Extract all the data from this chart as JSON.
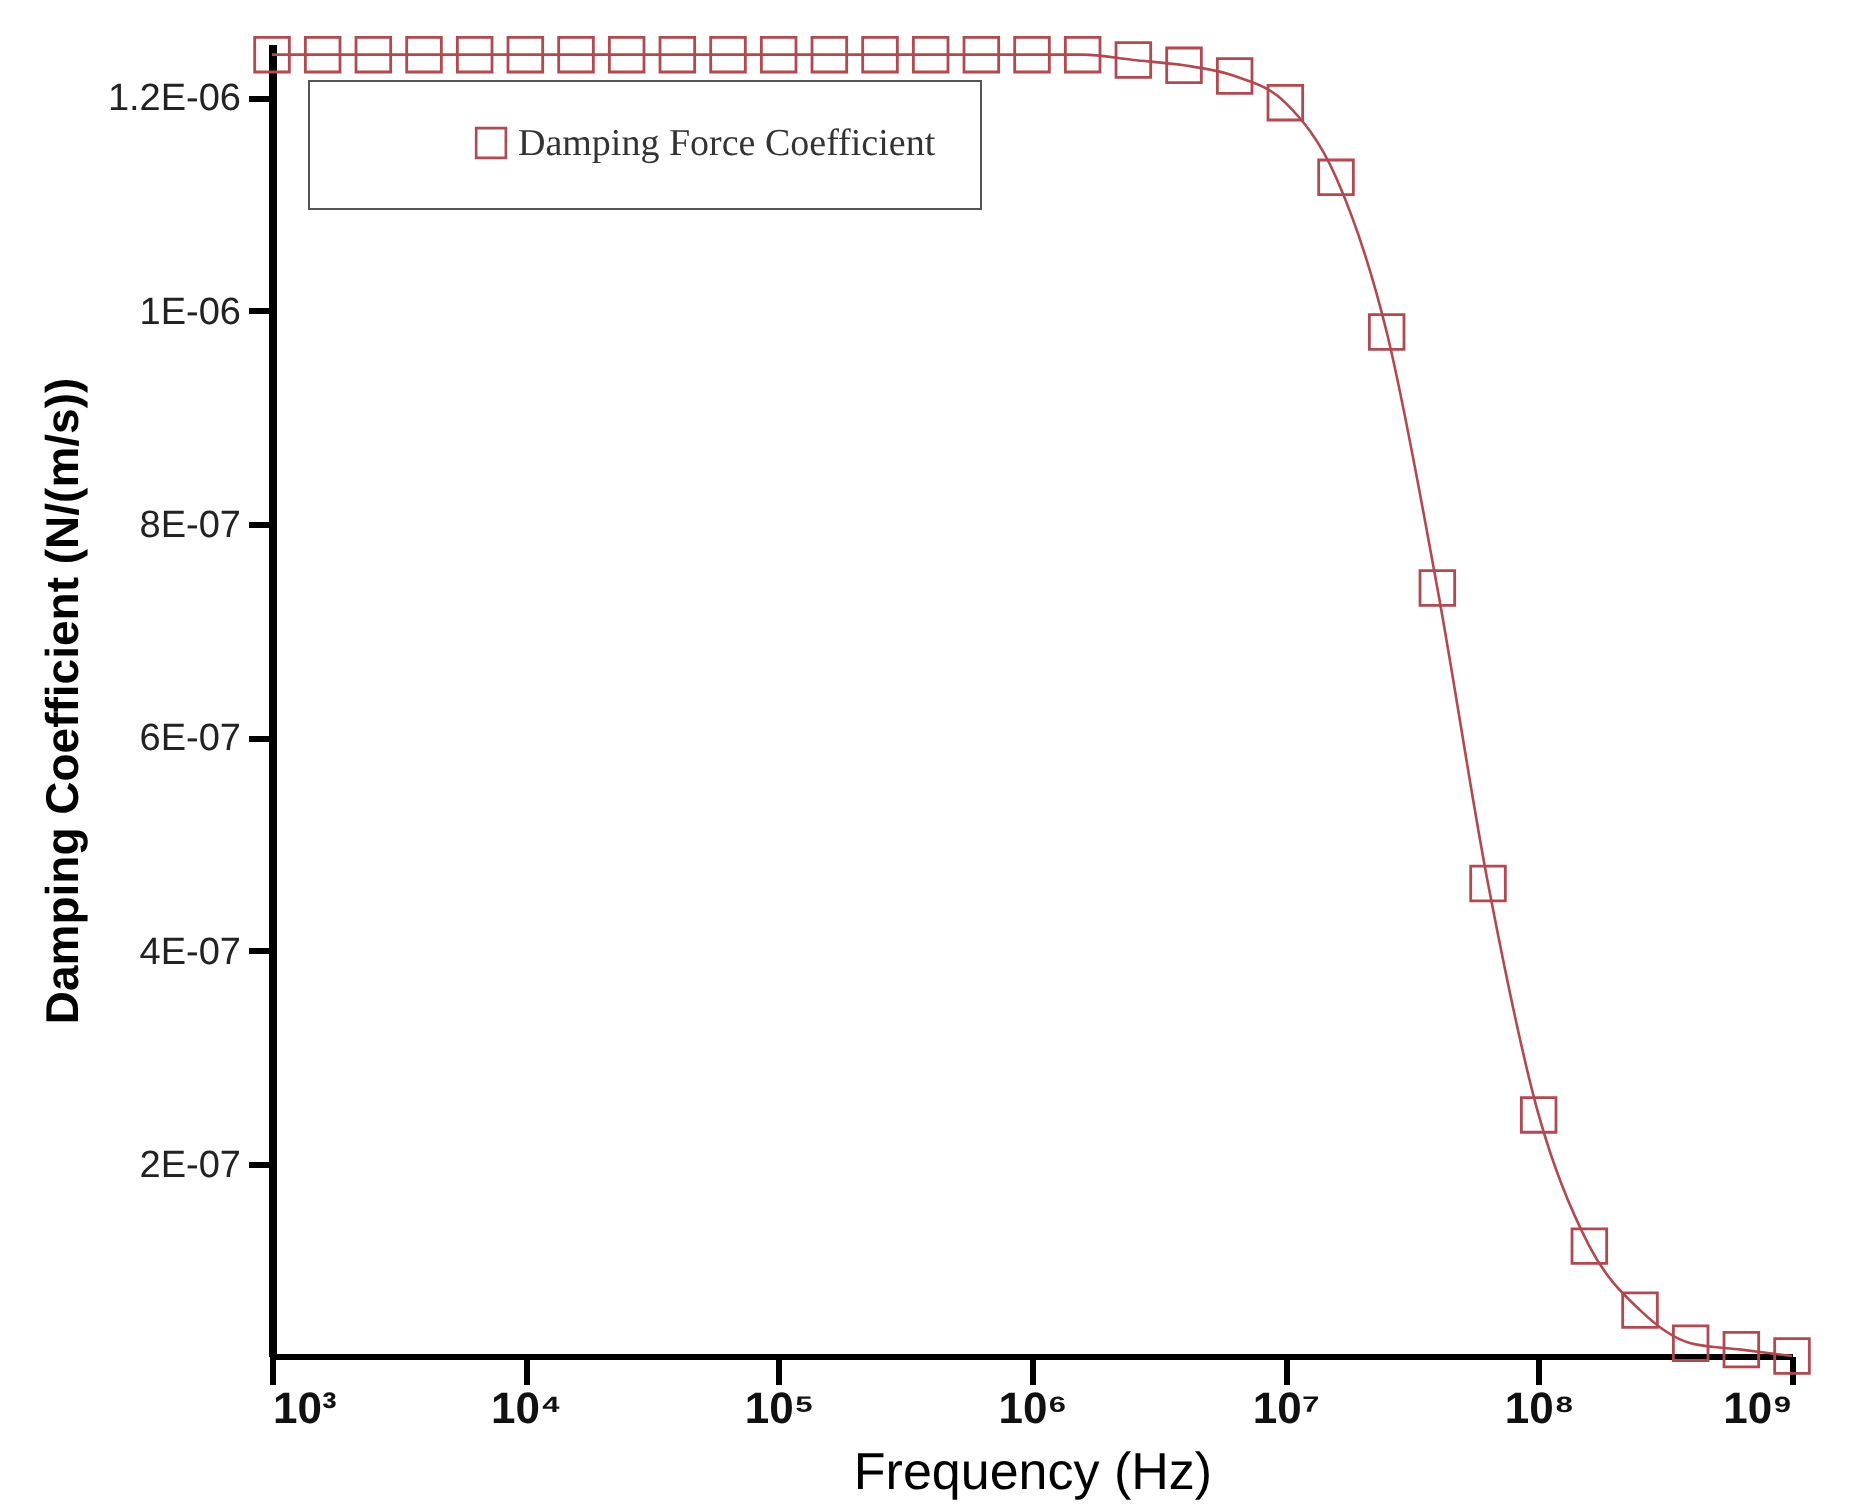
{
  "chart_data": {
    "type": "line",
    "xlabel": "Frequency (Hz)",
    "ylabel": "Damping Coefficient (N/(m/s))",
    "log": "x",
    "marker": "square",
    "line_style": "solid",
    "legend": "top left",
    "xlim": [
      1000,
      1000000000
    ],
    "ylim": [
      2e-08,
      1.25e-06
    ],
    "xticks": [
      {
        "value": 1000,
        "label": "10³"
      },
      {
        "value": 10000,
        "label": "10⁴"
      },
      {
        "value": 100000,
        "label": "10⁵"
      },
      {
        "value": 1000000,
        "label": "10⁶"
      },
      {
        "value": 10000000,
        "label": "10⁷"
      },
      {
        "value": 100000000,
        "label": "10⁸"
      },
      {
        "value": 1000000000,
        "label": "10⁹"
      }
    ],
    "yticks": [
      {
        "value": 2e-07,
        "label": "2E-07"
      },
      {
        "value": 4e-07,
        "label": "4E-07"
      },
      {
        "value": 6e-07,
        "label": "6E-07"
      },
      {
        "value": 8e-07,
        "label": "8E-07"
      },
      {
        "value": 1e-06,
        "label": "1E-06"
      },
      {
        "value": 1.2e-06,
        "label": "1.2E-06"
      }
    ],
    "x": [
      1000,
      1585,
      2512,
      3981,
      6310,
      10000,
      15849,
      25119,
      39811,
      63096,
      100000,
      158489,
      251189,
      398107,
      630957,
      1000000,
      1584893,
      2511886,
      3981072,
      6309573,
      10000000,
      15848932,
      25118864,
      39810717,
      63095734,
      100000000,
      158489319,
      251188643,
      398107171,
      630957344,
      1000000000
    ],
    "series": [
      {
        "name": "Damping Force Coefficient",
        "color": "#b5474f",
        "values": [
          1.24e-06,
          1.24e-06,
          1.24e-06,
          1.24e-06,
          1.24e-06,
          1.24e-06,
          1.24e-06,
          1.24e-06,
          1.24e-06,
          1.24e-06,
          1.24e-06,
          1.24e-06,
          1.24e-06,
          1.24e-06,
          1.24e-06,
          1.24e-06,
          1.24e-06,
          1.235e-06,
          1.23e-06,
          1.22e-06,
          1.195e-06,
          1.125e-06,
          9.8e-07,
          7.4e-07,
          4.63e-07,
          2.46e-07,
          1.23e-07,
          6.3e-08,
          3.2e-08,
          2.6e-08,
          2e-08
        ]
      }
    ]
  }
}
